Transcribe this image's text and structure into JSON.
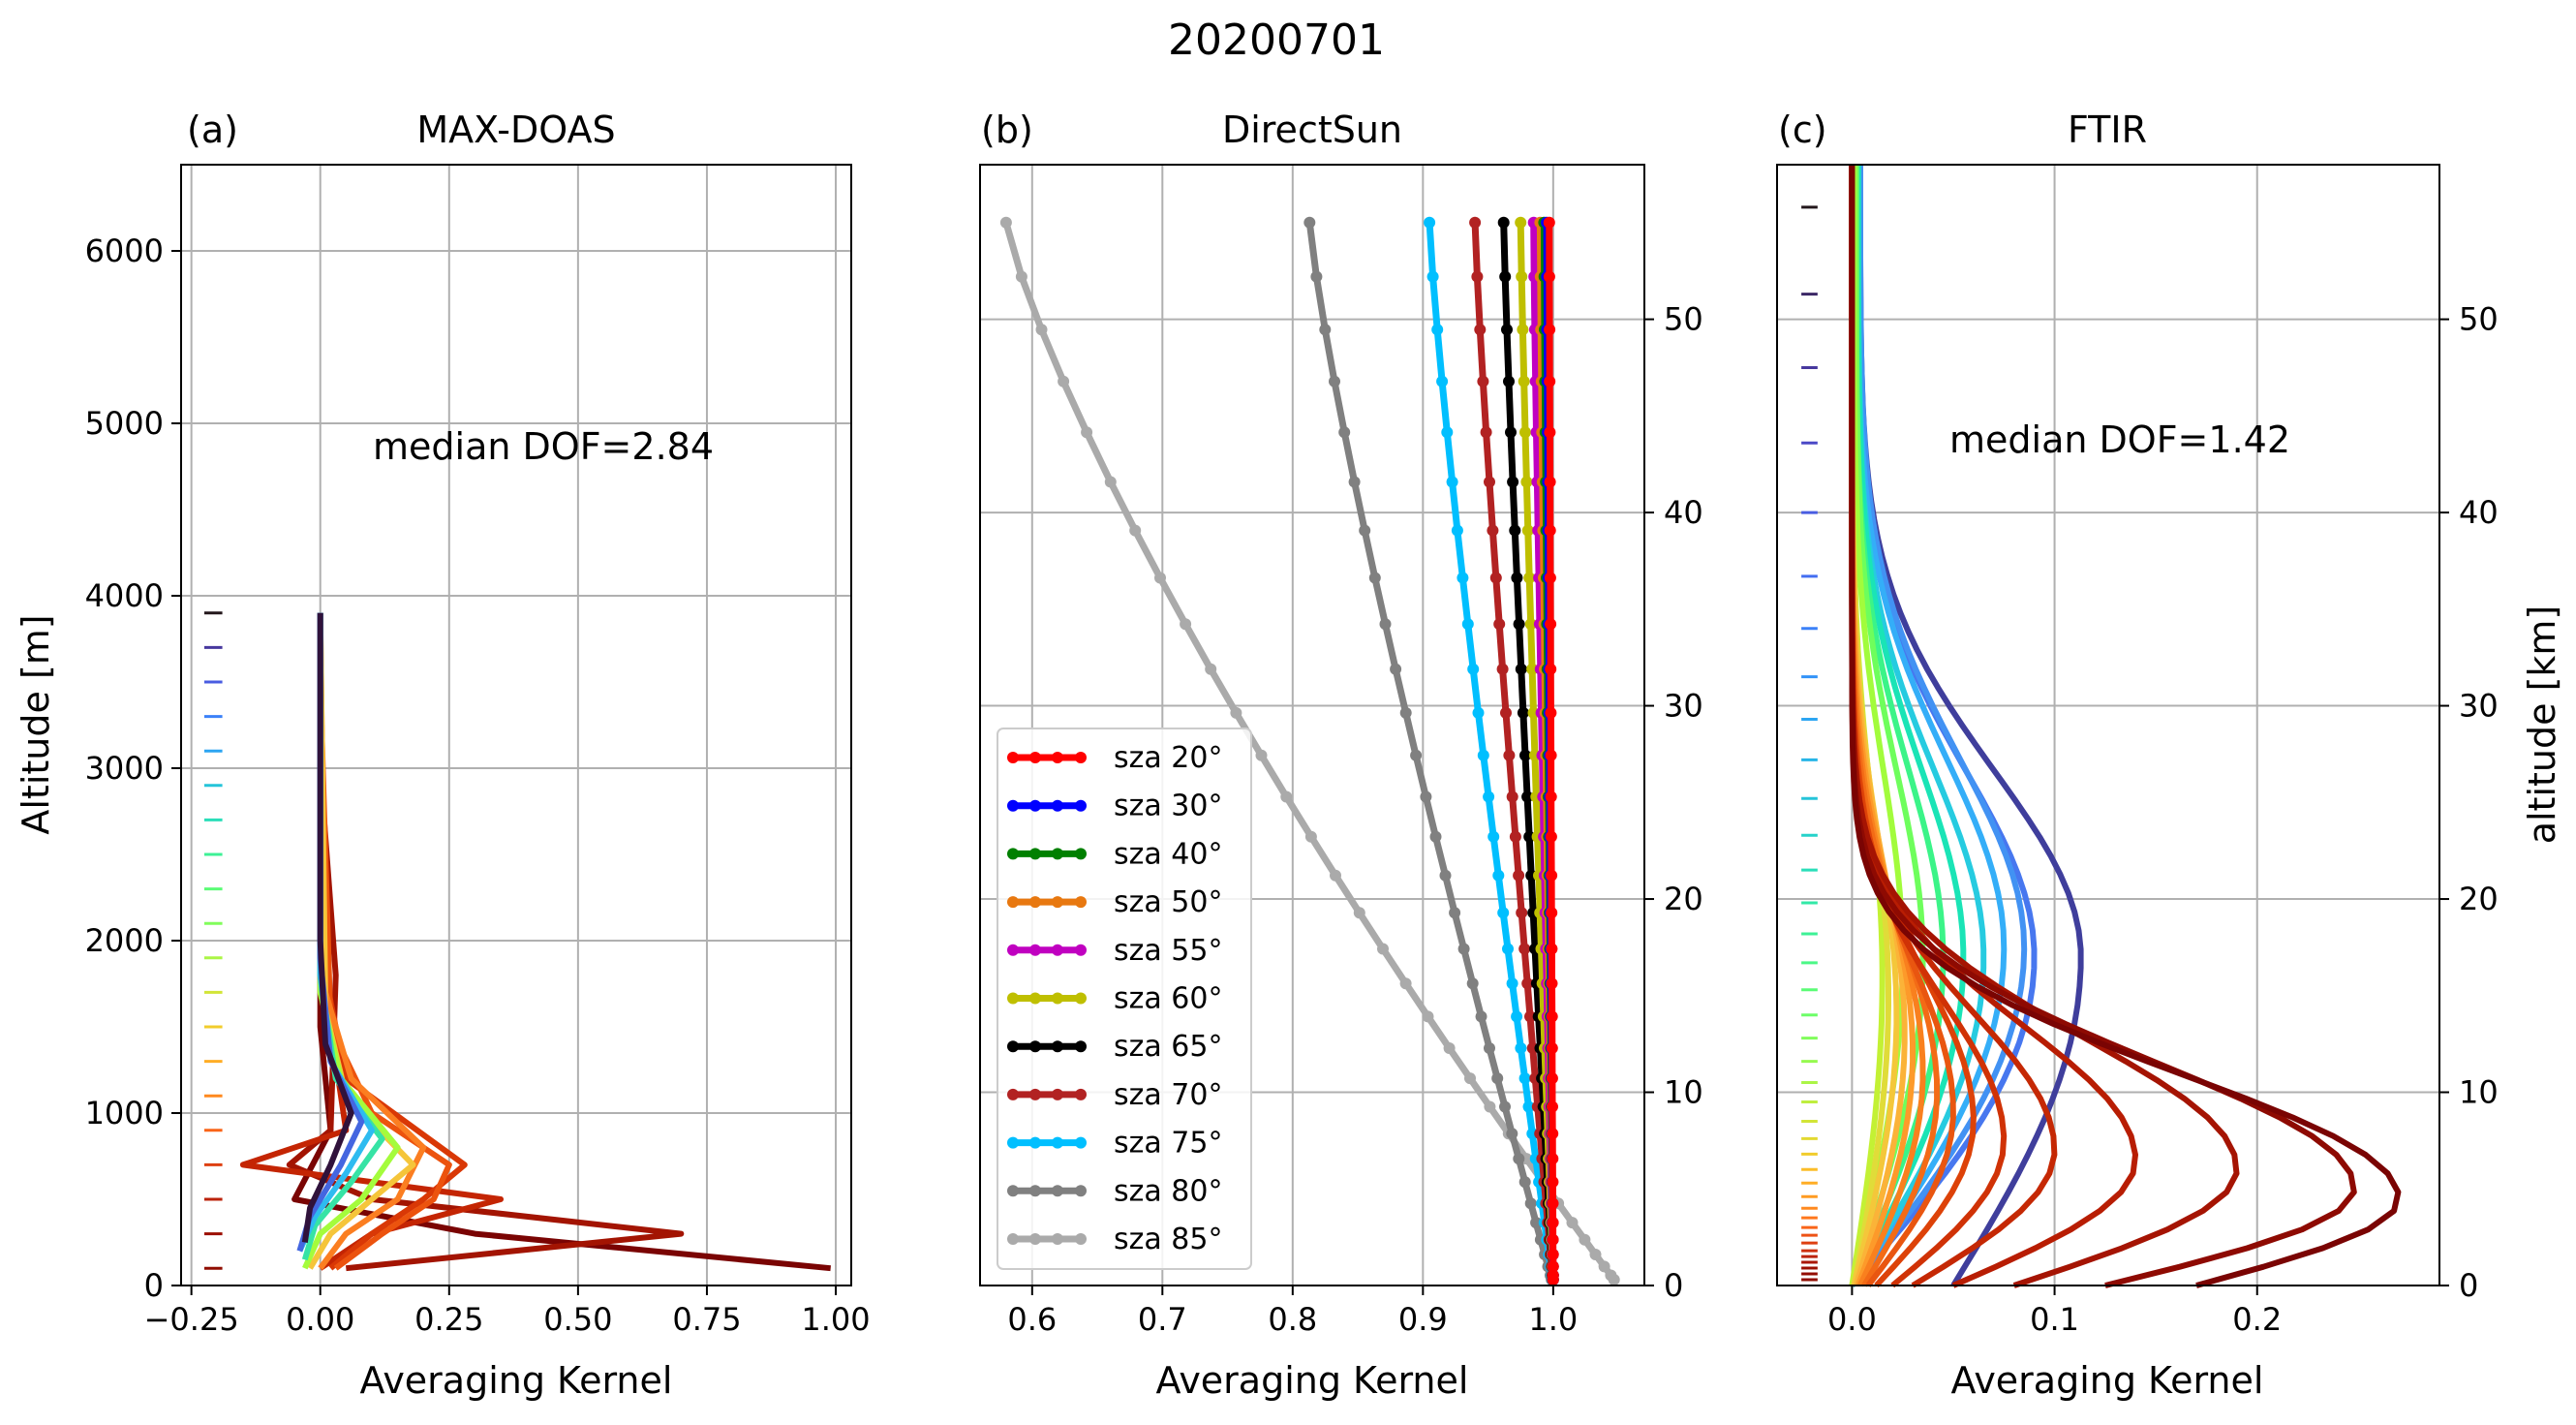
{
  "figure": {
    "suptitle": "20200701"
  },
  "chart_data": [
    {
      "type": "line",
      "panel_label": "(a)",
      "title": "MAX-DOAS",
      "xlabel": "Averaging Kernel",
      "ylabel": "Altitude [m]",
      "xlim": [
        -0.27,
        1.03
      ],
      "ylim": [
        0,
        6500
      ],
      "xticks": [
        -0.25,
        0.0,
        0.25,
        0.5,
        0.75,
        1.0
      ],
      "xticklabels": [
        "−0.25",
        "0.00",
        "0.25",
        "0.50",
        "0.75",
        "1.00"
      ],
      "yticks": [
        0,
        1000,
        2000,
        3000,
        4000,
        5000,
        6000
      ],
      "yticklabels": [
        "0",
        "1000",
        "2000",
        "3000",
        "4000",
        "5000",
        "6000"
      ],
      "grid": true,
      "annotation": "median DOF=2.84",
      "colormap": "turbo",
      "level_altitudes": [
        100,
        300,
        500,
        700,
        900,
        1100,
        1300,
        1500,
        1700,
        1900,
        2100,
        2300,
        2500,
        2700,
        2900,
        3100,
        3300,
        3500,
        3700,
        3900
      ],
      "series": [
        {
          "color": "#7a0403",
          "x": [
            0.99,
            0.3,
            -0.05,
            0.02,
            0.0,
            0.0,
            0.0
          ],
          "y": [
            100,
            300,
            500,
            900,
            1500,
            2500,
            3900
          ]
        },
        {
          "color": "#a31402",
          "x": [
            0.05,
            0.7,
            0.1,
            -0.06,
            0.02,
            0.03,
            0.0
          ],
          "y": [
            100,
            300,
            500,
            700,
            900,
            1800,
            3000
          ]
        },
        {
          "color": "#c42503",
          "x": [
            0.0,
            0.1,
            0.35,
            -0.15,
            0.05,
            0.02,
            0.0
          ],
          "y": [
            100,
            300,
            500,
            700,
            900,
            1500,
            3000
          ]
        },
        {
          "color": "#d93806",
          "x": [
            0.02,
            0.1,
            0.2,
            0.28,
            0.05,
            0.01,
            0.0
          ],
          "y": [
            100,
            300,
            500,
            700,
            1200,
            1800,
            3500
          ]
        },
        {
          "color": "#ec530e",
          "x": [
            0.03,
            0.12,
            0.22,
            0.25,
            0.1,
            0.02,
            0.0
          ],
          "y": [
            100,
            300,
            500,
            700,
            1000,
            1500,
            3500
          ]
        },
        {
          "color": "#fb7e21",
          "x": [
            0.0,
            0.05,
            0.15,
            0.2,
            0.06,
            0.01,
            0.0
          ],
          "y": [
            100,
            300,
            500,
            800,
            1200,
            1700,
            3900
          ]
        },
        {
          "color": "#f5c53a",
          "x": [
            -0.02,
            0.02,
            0.1,
            0.18,
            0.05,
            0.01,
            0.0
          ],
          "y": [
            100,
            300,
            500,
            700,
            1100,
            1600,
            3900
          ]
        },
        {
          "color": "#a4fc3c",
          "x": [
            -0.03,
            0.0,
            0.08,
            0.15,
            0.04,
            0.0,
            0.0
          ],
          "y": [
            100,
            300,
            500,
            800,
            1200,
            1700,
            3900
          ]
        },
        {
          "color": "#36e3a5",
          "x": [
            -0.03,
            -0.01,
            0.06,
            0.12,
            0.03,
            0.0,
            0.0
          ],
          "y": [
            150,
            350,
            600,
            850,
            1200,
            1800,
            3900
          ]
        },
        {
          "color": "#2ebbf0",
          "x": [
            -0.04,
            -0.01,
            0.05,
            0.1,
            0.02,
            0.0,
            0.0
          ],
          "y": [
            200,
            400,
            650,
            900,
            1300,
            1800,
            3900
          ]
        },
        {
          "color": "#4466e0",
          "x": [
            -0.04,
            -0.02,
            0.04,
            0.08,
            0.02,
            0.0,
            0.0
          ],
          "y": [
            200,
            400,
            700,
            950,
            1300,
            1900,
            3900
          ]
        },
        {
          "color": "#30123b",
          "x": [
            -0.03,
            -0.02,
            0.02,
            0.06,
            0.01,
            0.0,
            0.0
          ],
          "y": [
            250,
            450,
            700,
            1000,
            1400,
            2000,
            3900
          ]
        }
      ]
    },
    {
      "type": "line",
      "panel_label": "(b)",
      "title": "DirectSun",
      "xlabel": "Averaging Kernel",
      "ylabel": "",
      "xlim": [
        0.56,
        1.07
      ],
      "ylim": [
        0,
        58
      ],
      "xticks": [
        0.6,
        0.7,
        0.8,
        0.9,
        1.0
      ],
      "xticklabels": [
        "0.6",
        "0.7",
        "0.8",
        "0.9",
        "1.0"
      ],
      "yticks": [
        0,
        10,
        20,
        30,
        40,
        50
      ],
      "yticklabels": [
        "0",
        "10",
        "20",
        "30",
        "40",
        "50"
      ],
      "grid": true,
      "legend_position": "lower-left",
      "series": [
        {
          "name": "sza 20°",
          "color": "#ff0000",
          "top_value": 0.997
        },
        {
          "name": "sza 30°",
          "color": "#0000ff",
          "top_value": 0.995
        },
        {
          "name": "sza 40°",
          "color": "#008000",
          "top_value": 0.993
        },
        {
          "name": "sza 50°",
          "color": "#e87810",
          "top_value": 0.99
        },
        {
          "name": "sza 55°",
          "color": "#c000c0",
          "top_value": 0.985
        },
        {
          "name": "sza 60°",
          "color": "#bfbf00",
          "top_value": 0.975
        },
        {
          "name": "sza 65°",
          "color": "#000000",
          "top_value": 0.962
        },
        {
          "name": "sza 70°",
          "color": "#b22222",
          "top_value": 0.94
        },
        {
          "name": "sza 75°",
          "color": "#00bfff",
          "top_value": 0.905
        },
        {
          "name": "sza 80°",
          "color": "#808080",
          "top_value": 0.813
        },
        {
          "name": "sza 85°",
          "color": "#aaaaaa",
          "top_value": 0.58
        }
      ]
    },
    {
      "type": "line",
      "panel_label": "(c)",
      "title": "FTIR",
      "xlabel": "Averaging Kernel",
      "ylabel": "altitude [km]",
      "xlim": [
        -0.037,
        0.29
      ],
      "ylim": [
        0,
        58
      ],
      "xticks": [
        0.0,
        0.1,
        0.2
      ],
      "xticklabels": [
        "0.0",
        "0.1",
        "0.2"
      ],
      "yticks": [
        0,
        10,
        20,
        30,
        40,
        50
      ],
      "yticklabels": [
        "0",
        "10",
        "20",
        "30",
        "40",
        "50"
      ],
      "grid": true,
      "annotation": "median DOF=1.42",
      "colormap": "turbo",
      "level_altitudes": [
        0.3,
        0.6,
        0.9,
        1.2,
        1.5,
        1.8,
        2.2,
        2.6,
        3.0,
        3.5,
        4.0,
        4.6,
        5.3,
        6.0,
        6.8,
        7.6,
        8.5,
        9.5,
        10.5,
        11.6,
        12.8,
        14.0,
        15.3,
        16.7,
        18.2,
        19.8,
        21.5,
        23.3,
        25.2,
        27.2,
        29.3,
        31.5,
        34.0,
        36.7,
        40.0,
        43.6,
        47.5,
        51.3,
        55.8
      ],
      "series": [
        {
          "color": "#7a0403",
          "peak": 0.27,
          "peak_alt": 4.5,
          "bottom": 0.17,
          "top": 0.0
        },
        {
          "color": "#8e0a02",
          "peak": 0.248,
          "peak_alt": 5.0,
          "bottom": 0.125,
          "top": 0.0
        },
        {
          "color": "#a51403",
          "peak": 0.19,
          "peak_alt": 6.0,
          "bottom": 0.08,
          "top": 0.0
        },
        {
          "color": "#b81d03",
          "peak": 0.14,
          "peak_alt": 6.5,
          "bottom": 0.05,
          "top": 0.0
        },
        {
          "color": "#c52804",
          "peak": 0.1,
          "peak_alt": 7.0,
          "bottom": 0.03,
          "top": 0.0
        },
        {
          "color": "#d03206",
          "peak": 0.075,
          "peak_alt": 7.5,
          "bottom": 0.02,
          "top": 0.0
        },
        {
          "color": "#dd4208",
          "peak": 0.06,
          "peak_alt": 8.5,
          "bottom": 0.012,
          "top": 0.0
        },
        {
          "color": "#e95610",
          "peak": 0.05,
          "peak_alt": 9.0,
          "bottom": 0.008,
          "top": 0.0
        },
        {
          "color": "#f36b16",
          "peak": 0.042,
          "peak_alt": 10.0,
          "bottom": 0.006,
          "top": 0.0
        },
        {
          "color": "#f9801e",
          "peak": 0.035,
          "peak_alt": 11.0,
          "bottom": 0.004,
          "top": 0.0
        },
        {
          "color": "#fd9a2a",
          "peak": 0.03,
          "peak_alt": 12.0,
          "bottom": 0.003,
          "top": 0.0
        },
        {
          "color": "#fbb338",
          "peak": 0.026,
          "peak_alt": 13.0,
          "bottom": 0.002,
          "top": 0.0
        },
        {
          "color": "#f4c73a",
          "peak": 0.022,
          "peak_alt": 14.0,
          "bottom": 0.001,
          "top": 0.0
        },
        {
          "color": "#e0dc39",
          "peak": 0.018,
          "peak_alt": 15.0,
          "bottom": 0.001,
          "top": 0.0
        },
        {
          "color": "#c3f134",
          "peak": 0.015,
          "peak_alt": 16.0,
          "bottom": 0.0,
          "top": 0.0
        },
        {
          "color": "#a2fc3c",
          "peak": 0.025,
          "peak_alt": 17.0,
          "bottom": 0.0,
          "top": 0.001
        },
        {
          "color": "#6efe5c",
          "peak": 0.035,
          "peak_alt": 17.0,
          "bottom": 0.0,
          "top": 0.002
        },
        {
          "color": "#3bf488",
          "peak": 0.045,
          "peak_alt": 17.0,
          "bottom": 0.0,
          "top": 0.002
        },
        {
          "color": "#1ae4b6",
          "peak": 0.055,
          "peak_alt": 17.0,
          "bottom": 0.0,
          "top": 0.003
        },
        {
          "color": "#26cbe0",
          "peak": 0.065,
          "peak_alt": 17.0,
          "bottom": 0.0,
          "top": 0.003
        },
        {
          "color": "#34aef8",
          "peak": 0.075,
          "peak_alt": 17.5,
          "bottom": 0.0,
          "top": 0.003
        },
        {
          "color": "#4292f3",
          "peak": 0.085,
          "peak_alt": 17.5,
          "bottom": 0.0,
          "top": 0.004
        },
        {
          "color": "#4777ef",
          "peak": 0.09,
          "peak_alt": 17.0,
          "bottom": 0.0,
          "top": 0.004
        },
        {
          "color": "#3f3e9c",
          "peak": 0.113,
          "peak_alt": 17.0,
          "bottom": 0.05,
          "top": 0.004
        }
      ]
    }
  ]
}
